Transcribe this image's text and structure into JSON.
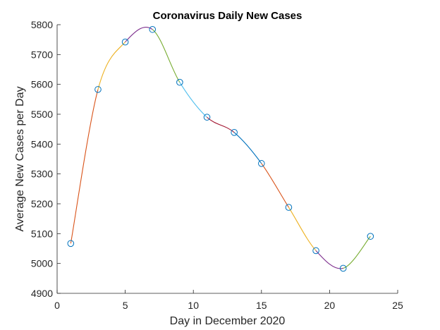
{
  "chart_data": {
    "type": "line",
    "title": "Coronavirus Daily New Cases",
    "xlabel": "Day in December 2020",
    "ylabel": "Average New Cases per Day",
    "xlim": [
      0,
      25
    ],
    "ylim": [
      4900,
      5800
    ],
    "xticks": [
      0,
      5,
      10,
      15,
      20,
      25
    ],
    "yticks": [
      4900,
      5000,
      5100,
      5200,
      5300,
      5400,
      5500,
      5600,
      5700,
      5800
    ],
    "grid": false,
    "legend": "none",
    "series": [
      {
        "x": [
          1,
          3,
          5,
          7,
          9,
          11,
          13,
          15,
          17,
          19,
          21,
          23
        ],
        "values": [
          5067,
          5583,
          5742,
          5784,
          5607,
          5490,
          5439,
          5335,
          5188,
          5043,
          4984,
          5091
        ],
        "marker": "circle",
        "marker_color": "#0072BD"
      }
    ],
    "segment_colors": [
      "#D95319",
      "#EDB120",
      "#7E2F8E",
      "#77AC30",
      "#4DBEEE",
      "#A2142F",
      "#0072BD",
      "#D95319",
      "#EDB120",
      "#7E2F8E",
      "#77AC30"
    ]
  }
}
